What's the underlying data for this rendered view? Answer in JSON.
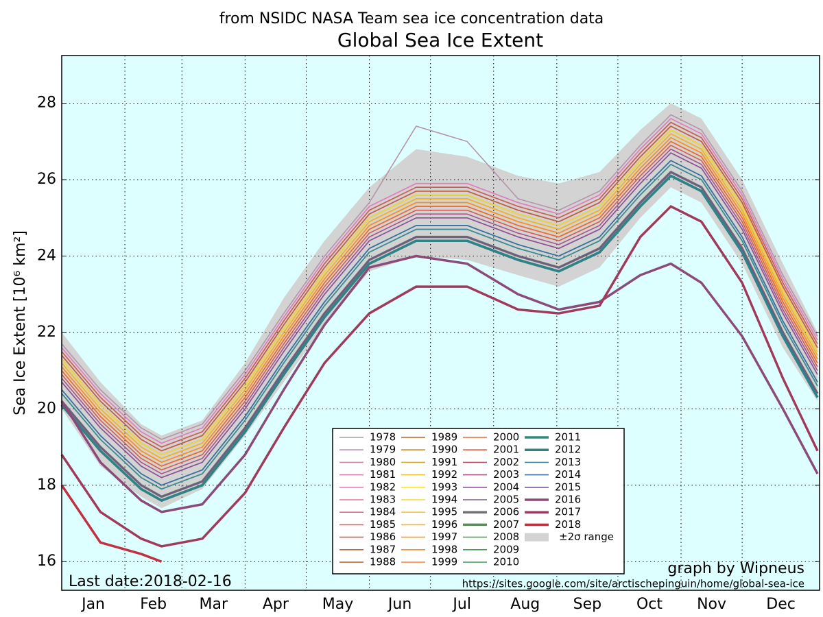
{
  "chart_data": {
    "type": "line",
    "subtitle": "from NSIDC NASA Team sea ice concentration data",
    "title": "Global Sea Ice Extent",
    "ylabel": "Sea Ice Extent [10⁶ km²]",
    "annotations": [
      "Last date:2018-02-16",
      "graph by Wipneus",
      "https://sites.google.com/site/arctischepinguin/home/global-sea-ice"
    ],
    "x": [
      1,
      20,
      40,
      50,
      70,
      91,
      110,
      130,
      152,
      175,
      200,
      225,
      245,
      265,
      285,
      300,
      315,
      335,
      355,
      372
    ],
    "xlim": [
      1,
      373
    ],
    "xticks": [
      {
        "value": 1,
        "label": "Jan"
      },
      {
        "value": 32,
        "label": "Feb"
      },
      {
        "value": 60,
        "label": "Mar"
      },
      {
        "value": 91,
        "label": "Apr"
      },
      {
        "value": 121,
        "label": "May"
      },
      {
        "value": 152,
        "label": "Jun"
      },
      {
        "value": 182,
        "label": "Jul"
      },
      {
        "value": 213,
        "label": "Aug"
      },
      {
        "value": 244,
        "label": "Sep"
      },
      {
        "value": 274,
        "label": "Oct"
      },
      {
        "value": 305,
        "label": "Nov"
      },
      {
        "value": 335,
        "label": "Dec"
      }
    ],
    "ylim": [
      15.25,
      29.25
    ],
    "yticks": [
      16,
      18,
      20,
      22,
      24,
      26,
      28
    ],
    "grid": true,
    "background": "#ddffff",
    "range": {
      "name": "±2σ range",
      "color": "#d3d3d3",
      "upper": [
        22.0,
        20.7,
        19.6,
        19.3,
        19.7,
        21.2,
        22.9,
        24.4,
        25.8,
        26.8,
        26.6,
        26.1,
        25.9,
        26.2,
        27.3,
        28.0,
        27.6,
        26.0,
        23.8,
        22.0
      ],
      "lower": [
        20.0,
        18.5,
        17.7,
        17.4,
        17.9,
        19.3,
        20.7,
        22.2,
        23.6,
        24.0,
        23.9,
        23.5,
        23.2,
        23.7,
        25.0,
        25.8,
        25.4,
        23.8,
        21.6,
        20.2
      ]
    },
    "series": [
      {
        "name": "1978",
        "color": "#a0a0a0",
        "values": [
          21.5,
          20.3,
          19.3,
          19.0,
          19.4,
          20.8,
          22.3,
          23.8,
          25.2,
          25.8,
          25.8,
          25.3,
          25.0,
          25.5,
          26.7,
          27.5,
          27.1,
          25.5,
          23.3,
          21.7
        ]
      },
      {
        "name": "1979",
        "color": "#b495a9",
        "values": [
          21.7,
          20.5,
          19.5,
          19.2,
          19.6,
          21.0,
          22.5,
          24.0,
          25.4,
          27.4,
          27.0,
          25.5,
          25.2,
          25.7,
          26.9,
          27.7,
          27.3,
          25.7,
          23.5,
          21.9
        ]
      },
      {
        "name": "1980",
        "color": "#c987a8",
        "values": [
          21.6,
          20.4,
          19.4,
          19.1,
          19.5,
          20.9,
          22.4,
          23.9,
          25.3,
          25.9,
          25.9,
          25.4,
          25.1,
          25.6,
          26.8,
          27.6,
          27.2,
          25.6,
          23.4,
          21.8
        ]
      },
      {
        "name": "1981",
        "color": "#d97fb0",
        "values": [
          21.5,
          20.3,
          19.3,
          19.0,
          19.4,
          20.8,
          22.3,
          23.8,
          25.2,
          25.8,
          25.8,
          25.3,
          25.0,
          25.5,
          26.7,
          27.5,
          27.1,
          25.5,
          23.3,
          21.7
        ]
      },
      {
        "name": "1982",
        "color": "#e27fbd",
        "values": [
          21.6,
          20.4,
          19.4,
          19.1,
          19.5,
          20.9,
          22.4,
          23.9,
          25.3,
          25.9,
          25.9,
          25.4,
          25.1,
          25.6,
          26.8,
          27.6,
          27.2,
          25.6,
          23.4,
          21.8
        ]
      },
      {
        "name": "1983",
        "color": "#e4739f",
        "values": [
          21.4,
          20.2,
          19.2,
          18.9,
          19.3,
          20.7,
          22.2,
          23.7,
          25.1,
          25.7,
          25.7,
          25.2,
          24.9,
          25.4,
          26.6,
          27.4,
          27.0,
          25.4,
          23.2,
          21.6
        ]
      },
      {
        "name": "1984",
        "color": "#e06a8a",
        "values": [
          21.3,
          20.1,
          19.1,
          18.8,
          19.2,
          20.6,
          22.1,
          23.6,
          25.0,
          25.6,
          25.6,
          25.1,
          24.8,
          25.3,
          26.5,
          27.3,
          26.9,
          25.3,
          23.1,
          21.5
        ]
      },
      {
        "name": "1985",
        "color": "#d9646d",
        "values": [
          21.4,
          20.2,
          19.2,
          18.9,
          19.3,
          20.7,
          22.2,
          23.7,
          25.1,
          25.7,
          25.7,
          25.2,
          24.9,
          25.4,
          26.6,
          27.4,
          27.0,
          25.4,
          23.2,
          21.6
        ]
      },
      {
        "name": "1986",
        "color": "#cd6050",
        "values": [
          21.5,
          20.3,
          19.3,
          19.0,
          19.4,
          20.8,
          22.3,
          23.8,
          25.2,
          25.8,
          25.8,
          25.3,
          25.0,
          25.5,
          26.7,
          27.5,
          27.1,
          25.5,
          23.3,
          21.7
        ]
      },
      {
        "name": "1987",
        "color": "#c0603b",
        "values": [
          21.4,
          20.2,
          19.2,
          18.9,
          19.3,
          20.7,
          22.2,
          23.7,
          25.1,
          25.7,
          25.7,
          25.2,
          24.9,
          25.4,
          26.6,
          27.4,
          27.0,
          25.4,
          23.2,
          21.6
        ]
      },
      {
        "name": "1988",
        "color": "#b55a2a",
        "values": [
          21.3,
          20.1,
          19.1,
          18.8,
          19.2,
          20.6,
          22.1,
          23.6,
          25.0,
          25.6,
          25.6,
          25.1,
          24.8,
          25.3,
          26.5,
          27.3,
          26.9,
          25.3,
          23.1,
          21.5
        ]
      },
      {
        "name": "1989",
        "color": "#b5632a",
        "values": [
          21.3,
          20.1,
          19.1,
          18.8,
          19.2,
          20.6,
          22.1,
          23.6,
          25.0,
          25.6,
          25.6,
          25.1,
          24.8,
          25.3,
          26.5,
          27.3,
          26.9,
          25.3,
          23.1,
          21.5
        ]
      },
      {
        "name": "1990",
        "color": "#c28a35",
        "values": [
          21.2,
          20.0,
          19.0,
          18.7,
          19.1,
          20.5,
          22.0,
          23.5,
          24.9,
          25.5,
          25.5,
          25.0,
          24.7,
          25.2,
          26.4,
          27.2,
          26.8,
          25.2,
          23.0,
          21.4
        ]
      },
      {
        "name": "1991",
        "color": "#d6aa2a",
        "values": [
          21.1,
          19.9,
          18.9,
          18.6,
          19.0,
          20.4,
          21.9,
          23.4,
          24.8,
          25.4,
          25.4,
          24.9,
          24.6,
          25.1,
          26.3,
          27.1,
          26.7,
          25.1,
          22.9,
          21.3
        ]
      },
      {
        "name": "1992",
        "color": "#e6c52a",
        "values": [
          21.2,
          20.0,
          19.0,
          18.7,
          19.1,
          20.5,
          22.0,
          23.5,
          24.9,
          25.5,
          25.5,
          25.0,
          24.7,
          25.2,
          26.4,
          27.2,
          26.8,
          25.2,
          23.0,
          21.4
        ]
      },
      {
        "name": "1993",
        "color": "#f5e532",
        "values": [
          21.3,
          20.1,
          19.1,
          18.8,
          19.2,
          20.6,
          22.1,
          23.6,
          25.0,
          25.6,
          25.6,
          25.1,
          24.8,
          25.3,
          26.5,
          27.3,
          26.9,
          25.3,
          23.1,
          21.5
        ]
      },
      {
        "name": "1994",
        "color": "#f3d830",
        "values": [
          21.3,
          20.1,
          19.1,
          18.8,
          19.2,
          20.6,
          22.1,
          23.6,
          25.0,
          25.6,
          25.6,
          25.1,
          24.8,
          25.3,
          26.5,
          27.3,
          26.9,
          25.3,
          23.1,
          21.5
        ]
      },
      {
        "name": "1995",
        "color": "#f5c825",
        "values": [
          21.0,
          19.8,
          18.8,
          18.5,
          18.9,
          20.3,
          21.8,
          23.3,
          24.7,
          25.3,
          25.3,
          24.8,
          24.5,
          25.0,
          26.2,
          27.0,
          26.6,
          25.0,
          22.8,
          21.2
        ]
      },
      {
        "name": "1996",
        "color": "#f7b21e",
        "values": [
          21.2,
          20.0,
          19.0,
          18.7,
          19.1,
          20.5,
          22.0,
          23.5,
          24.9,
          25.5,
          25.5,
          25.0,
          24.7,
          25.2,
          26.4,
          27.2,
          26.8,
          25.2,
          23.0,
          21.4
        ]
      },
      {
        "name": "1997",
        "color": "#fb9e1a",
        "values": [
          21.0,
          19.8,
          18.8,
          18.5,
          18.9,
          20.3,
          21.8,
          23.3,
          24.7,
          25.3,
          25.3,
          24.8,
          24.5,
          25.0,
          26.2,
          27.0,
          26.6,
          25.0,
          22.8,
          21.2
        ]
      },
      {
        "name": "1998",
        "color": "#ff8c1a",
        "values": [
          21.1,
          19.9,
          18.9,
          18.6,
          19.0,
          20.4,
          21.9,
          23.4,
          24.8,
          25.4,
          25.4,
          24.9,
          24.6,
          25.1,
          26.3,
          27.1,
          26.7,
          25.1,
          22.9,
          21.3
        ]
      },
      {
        "name": "1999",
        "color": "#ff8030",
        "values": [
          21.0,
          19.8,
          18.8,
          18.5,
          18.9,
          20.3,
          21.8,
          23.3,
          24.7,
          25.3,
          25.3,
          24.8,
          24.5,
          25.0,
          26.2,
          27.0,
          26.6,
          25.0,
          22.8,
          21.2
        ]
      },
      {
        "name": "2000",
        "color": "#e86c3a",
        "values": [
          21.0,
          19.8,
          18.8,
          18.5,
          18.9,
          20.3,
          21.8,
          23.3,
          24.7,
          25.3,
          25.3,
          24.8,
          24.5,
          25.0,
          26.2,
          27.0,
          26.6,
          25.0,
          22.8,
          21.2
        ]
      },
      {
        "name": "2001",
        "color": "#d65d4c",
        "values": [
          20.9,
          19.7,
          18.7,
          18.4,
          18.8,
          20.2,
          21.7,
          23.2,
          24.6,
          25.2,
          25.2,
          24.7,
          24.4,
          24.9,
          26.1,
          26.9,
          26.5,
          24.9,
          22.7,
          21.1
        ]
      },
      {
        "name": "2002",
        "color": "#c0506a",
        "values": [
          20.7,
          19.5,
          18.5,
          18.2,
          18.6,
          20.0,
          21.5,
          23.0,
          24.4,
          25.0,
          25.0,
          24.5,
          24.2,
          24.7,
          25.9,
          26.7,
          26.3,
          24.7,
          22.5,
          20.9
        ]
      },
      {
        "name": "2003",
        "color": "#a8548a",
        "values": [
          20.8,
          19.6,
          18.6,
          18.3,
          18.7,
          20.1,
          21.6,
          23.1,
          24.5,
          25.1,
          25.1,
          24.6,
          24.3,
          24.8,
          26.0,
          26.8,
          26.4,
          24.8,
          22.6,
          21.0
        ]
      },
      {
        "name": "2004",
        "color": "#8a5498",
        "values": [
          20.7,
          19.5,
          18.5,
          18.2,
          18.6,
          20.0,
          21.5,
          23.0,
          24.4,
          25.0,
          25.0,
          24.5,
          24.2,
          24.7,
          25.9,
          26.7,
          26.3,
          24.7,
          22.5,
          20.9
        ]
      },
      {
        "name": "2005",
        "color": "#7a5c8e",
        "values": [
          20.5,
          19.3,
          18.3,
          18.0,
          18.4,
          19.8,
          21.3,
          22.8,
          24.2,
          24.8,
          24.8,
          24.3,
          24.0,
          24.5,
          25.7,
          26.5,
          26.1,
          24.5,
          22.3,
          20.7
        ]
      },
      {
        "name": "2006",
        "color": "#707070",
        "width": 3.5,
        "values": [
          20.2,
          19.0,
          18.0,
          17.7,
          18.1,
          19.5,
          21.0,
          22.5,
          23.9,
          24.5,
          24.5,
          24.0,
          23.7,
          24.2,
          25.4,
          26.2,
          25.8,
          24.2,
          22.0,
          20.4
        ]
      },
      {
        "name": "2007",
        "color": "#5f8a5f",
        "width": 3.5,
        "values": [
          20.1,
          18.9,
          17.9,
          17.6,
          18.0,
          19.4,
          20.9,
          22.4,
          23.8,
          24.4,
          24.4,
          23.9,
          23.6,
          24.1,
          25.3,
          26.1,
          25.7,
          24.1,
          21.9,
          20.3
        ]
      },
      {
        "name": "2008",
        "color": "#4fa64f",
        "values": [
          20.4,
          19.2,
          18.2,
          17.9,
          18.3,
          19.7,
          21.2,
          22.7,
          24.1,
          24.7,
          24.7,
          24.2,
          23.9,
          24.4,
          25.6,
          26.4,
          26.0,
          24.4,
          22.2,
          20.6
        ]
      },
      {
        "name": "2009",
        "color": "#3aa04a",
        "values": [
          20.5,
          19.3,
          18.3,
          18.0,
          18.4,
          19.8,
          21.3,
          22.8,
          24.2,
          24.8,
          24.8,
          24.3,
          24.0,
          24.5,
          25.7,
          26.5,
          26.1,
          24.5,
          22.3,
          20.7
        ]
      },
      {
        "name": "2010",
        "color": "#3f9a5a",
        "values": [
          20.4,
          19.2,
          18.2,
          17.9,
          18.3,
          19.7,
          21.2,
          22.7,
          24.1,
          24.7,
          24.7,
          24.2,
          23.9,
          24.4,
          25.6,
          26.4,
          26.0,
          24.4,
          22.2,
          20.6
        ]
      },
      {
        "name": "2011",
        "color": "#2f8a7a",
        "width": 3.5,
        "values": [
          20.1,
          18.9,
          17.9,
          17.6,
          18.0,
          19.4,
          20.9,
          22.4,
          23.8,
          24.4,
          24.4,
          23.9,
          23.6,
          24.1,
          25.3,
          26.1,
          25.7,
          24.1,
          21.9,
          20.3
        ]
      },
      {
        "name": "2012",
        "color": "#2f8288",
        "width": 3.5,
        "values": [
          20.1,
          18.9,
          17.9,
          17.6,
          18.0,
          19.4,
          20.9,
          22.4,
          23.8,
          24.4,
          24.4,
          23.9,
          23.6,
          24.1,
          25.3,
          26.1,
          25.7,
          24.1,
          21.9,
          20.3
        ]
      },
      {
        "name": "2013",
        "color": "#3a8a9a",
        "values": [
          20.4,
          19.2,
          18.2,
          17.9,
          18.3,
          19.7,
          21.2,
          22.7,
          24.1,
          24.7,
          24.7,
          24.2,
          23.9,
          24.4,
          25.6,
          26.4,
          26.0,
          24.4,
          22.2,
          20.6
        ]
      },
      {
        "name": "2014",
        "color": "#3a6fa8",
        "values": [
          20.5,
          19.3,
          18.3,
          18.0,
          18.4,
          19.8,
          21.3,
          22.8,
          24.2,
          24.8,
          24.8,
          24.3,
          24.0,
          24.5,
          25.7,
          26.5,
          26.1,
          24.5,
          22.3,
          20.7
        ]
      },
      {
        "name": "2015",
        "color": "#6a5a8a",
        "values": [
          20.2,
          19.0,
          18.0,
          17.7,
          18.1,
          19.5,
          21.0,
          22.5,
          23.9,
          24.5,
          24.5,
          24.0,
          23.7,
          24.2,
          25.4,
          26.2,
          25.8,
          24.2,
          22.0,
          20.4
        ]
      },
      {
        "name": "2016",
        "color": "#8a4a7a",
        "width": 3.5,
        "values": [
          20.2,
          18.6,
          17.6,
          17.3,
          17.5,
          18.8,
          20.5,
          22.2,
          23.7,
          24.0,
          23.8,
          23.0,
          22.6,
          22.8,
          23.5,
          23.8,
          23.3,
          21.9,
          20.0,
          18.3
        ]
      },
      {
        "name": "2017",
        "color": "#a03a5a",
        "width": 3.5,
        "values": [
          18.8,
          17.3,
          16.6,
          16.4,
          16.6,
          17.8,
          19.5,
          21.2,
          22.5,
          23.2,
          23.2,
          22.6,
          22.5,
          22.7,
          24.5,
          25.3,
          24.9,
          23.3,
          20.8,
          18.9
        ]
      },
      {
        "name": "2018",
        "color": "#c03040",
        "width": 3.5,
        "values": [
          18.0,
          16.5,
          16.2,
          16.0,
          null,
          null,
          null,
          null,
          null,
          null,
          null,
          null,
          null,
          null,
          null,
          null,
          null,
          null,
          null,
          null
        ]
      }
    ]
  }
}
